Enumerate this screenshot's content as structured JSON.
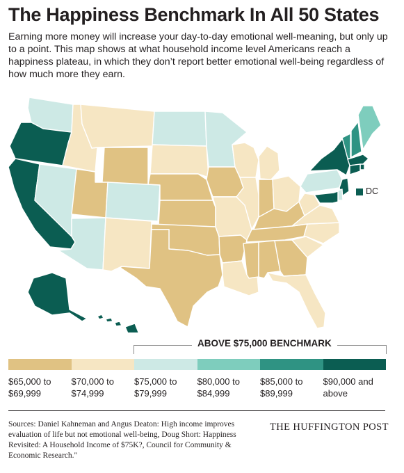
{
  "header": {
    "title": "The Happiness Benchmark In All 50 States",
    "subtitle": "Earning more money will increase your day-to-day emotional well-meaning, but only up to a point. This map shows at what household income level Americans reach a happiness plateau, in which they don’t report better emotional well-being regardless of how much more they earn."
  },
  "legend": {
    "bracket_label": "ABOVE $75,000 BENCHMARK",
    "items": [
      {
        "key": "65k",
        "label": "$65,000 to $69,999",
        "color": "#e0c283"
      },
      {
        "key": "70k",
        "label": "$70,000 to $74,999",
        "color": "#f6e6c3"
      },
      {
        "key": "75k",
        "label": "$75,000 to $79,999",
        "color": "#cde9e5"
      },
      {
        "key": "80k",
        "label": "$80,000 to $84,999",
        "color": "#7ecdbd"
      },
      {
        "key": "85k",
        "label": "$85,000 to $89,999",
        "color": "#2f9383"
      },
      {
        "key": "90k",
        "label": "$90,000 and above",
        "color": "#0b5d52"
      }
    ]
  },
  "dc": {
    "label": "DC",
    "tier": "90k"
  },
  "states": [
    {
      "key": "WA",
      "tier": "75k"
    },
    {
      "key": "OR",
      "tier": "90k"
    },
    {
      "key": "CA",
      "tier": "90k"
    },
    {
      "key": "ID",
      "tier": "70k"
    },
    {
      "key": "NV",
      "tier": "75k"
    },
    {
      "key": "MT",
      "tier": "70k"
    },
    {
      "key": "WY",
      "tier": "65k"
    },
    {
      "key": "UT",
      "tier": "65k"
    },
    {
      "key": "AZ",
      "tier": "75k"
    },
    {
      "key": "CO",
      "tier": "75k"
    },
    {
      "key": "NM",
      "tier": "70k"
    },
    {
      "key": "ND",
      "tier": "75k"
    },
    {
      "key": "SD",
      "tier": "70k"
    },
    {
      "key": "NE",
      "tier": "65k"
    },
    {
      "key": "KS",
      "tier": "65k"
    },
    {
      "key": "OK",
      "tier": "65k"
    },
    {
      "key": "TX",
      "tier": "65k"
    },
    {
      "key": "MN",
      "tier": "75k"
    },
    {
      "key": "IA",
      "tier": "65k"
    },
    {
      "key": "MO",
      "tier": "70k"
    },
    {
      "key": "AR",
      "tier": "65k"
    },
    {
      "key": "LA",
      "tier": "70k"
    },
    {
      "key": "WI",
      "tier": "70k"
    },
    {
      "key": "IL",
      "tier": "70k"
    },
    {
      "key": "MI",
      "tier": "70k"
    },
    {
      "key": "IN",
      "tier": "65k"
    },
    {
      "key": "OH",
      "tier": "70k"
    },
    {
      "key": "KY",
      "tier": "65k"
    },
    {
      "key": "TN",
      "tier": "65k"
    },
    {
      "key": "MS",
      "tier": "65k"
    },
    {
      "key": "AL",
      "tier": "65k"
    },
    {
      "key": "GA",
      "tier": "65k"
    },
    {
      "key": "FL",
      "tier": "70k"
    },
    {
      "key": "SC",
      "tier": "70k"
    },
    {
      "key": "NC",
      "tier": "70k"
    },
    {
      "key": "VA",
      "tier": "70k"
    },
    {
      "key": "WV",
      "tier": "70k"
    },
    {
      "key": "PA",
      "tier": "75k"
    },
    {
      "key": "NY",
      "tier": "90k"
    },
    {
      "key": "VT",
      "tier": "85k"
    },
    {
      "key": "NH",
      "tier": "85k"
    },
    {
      "key": "ME",
      "tier": "80k"
    },
    {
      "key": "MA",
      "tier": "90k"
    },
    {
      "key": "RI",
      "tier": "90k"
    },
    {
      "key": "CT",
      "tier": "90k"
    },
    {
      "key": "NJ",
      "tier": "90k"
    },
    {
      "key": "DE",
      "tier": "75k"
    },
    {
      "key": "MD",
      "tier": "90k"
    },
    {
      "key": "AK",
      "tier": "90k"
    },
    {
      "key": "HI",
      "tier": "90k"
    }
  ],
  "footer": {
    "sources": "Sources: Daniel Kahneman and Angus Deaton: High income improves evaluation of life but not emotional well-being, Doug Short: Happiness Revisited: A Household Income of $75K?, Council for Community & Economic Research.\"",
    "brand": "THE HUFFINGTON POST"
  }
}
